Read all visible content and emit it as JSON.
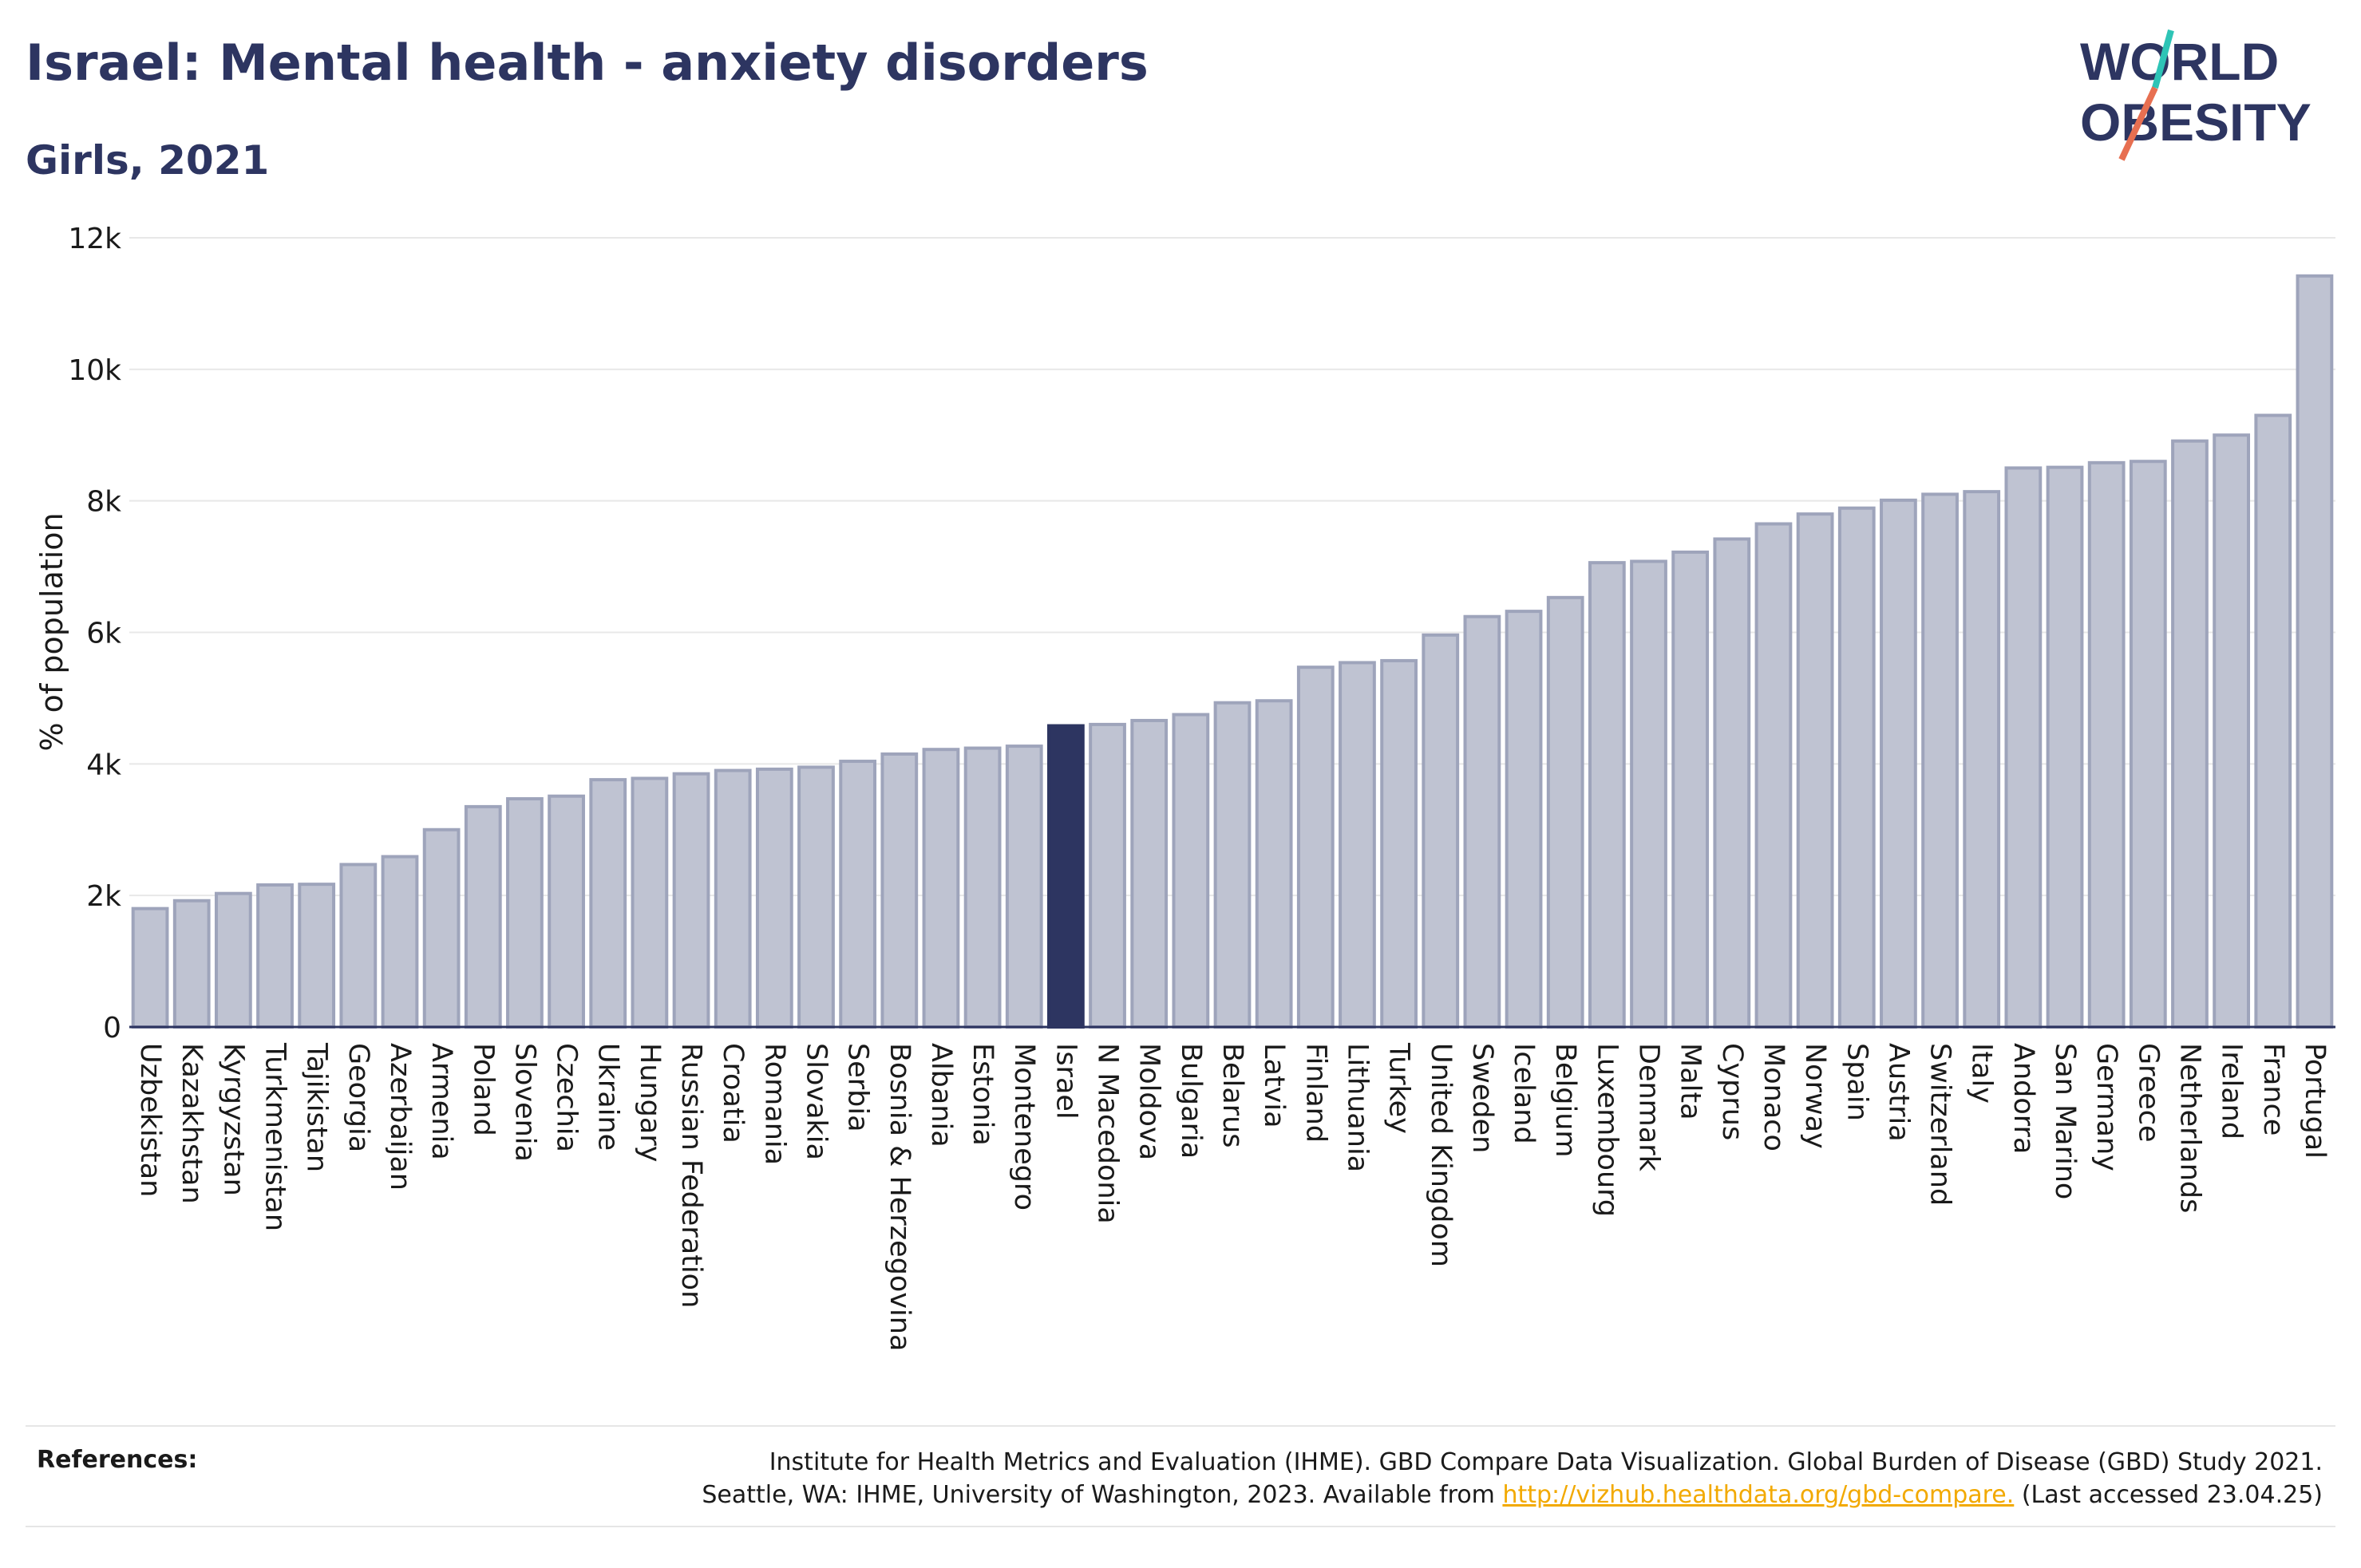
{
  "header": {
    "title": "Israel: Mental health - anxiety disorders",
    "subtitle": "Girls, 2021"
  },
  "logo": {
    "line1": "WORLD",
    "line2": "OBESITY",
    "slash_colors": [
      "#2ec4b6",
      "#e76f51"
    ]
  },
  "references": {
    "label": "References:",
    "line1": "Institute for Health Metrics and Evaluation (IHME). GBD Compare Data Visualization. Global Burden of Disease (GBD) Study 2021.",
    "line2_prefix": "Seattle, WA: IHME, University of Washington, 2023. Available from ",
    "link": "http://vizhub.healthdata.org/gbd-compare.",
    "line2_suffix": " (Last accessed 23.04.25)"
  },
  "colors": {
    "bar": "#bfc3d2",
    "bar_border": "#9ea4bb",
    "highlight": "#2d3561",
    "grid": "#e8e8e8",
    "axis": "#2d3561"
  },
  "chart_data": {
    "type": "bar",
    "title": "Israel: Mental health - anxiety disorders",
    "subtitle": "Girls, 2021",
    "ylabel": "% of population",
    "xlabel": "",
    "ylim": [
      0,
      12000
    ],
    "yticks": [
      0,
      2000,
      4000,
      6000,
      8000,
      10000,
      12000
    ],
    "ytick_labels": [
      "0",
      "2k",
      "4k",
      "6k",
      "8k",
      "10k",
      "12k"
    ],
    "grid": true,
    "highlight": "Israel",
    "categories": [
      "Uzbekistan",
      "Kazakhstan",
      "Kyrgyzstan",
      "Turkmenistan",
      "Tajikistan",
      "Georgia",
      "Azerbaijan",
      "Armenia",
      "Poland",
      "Slovenia",
      "Czechia",
      "Ukraine",
      "Hungary",
      "Russian Federation",
      "Croatia",
      "Romania",
      "Slovakia",
      "Serbia",
      "Bosnia & Herzegovina",
      "Albania",
      "Estonia",
      "Montenegro",
      "Israel",
      "N Macedonia",
      "Moldova",
      "Bulgaria",
      "Belarus",
      "Latvia",
      "Finland",
      "Lithuania",
      "Turkey",
      "United Kingdom",
      "Sweden",
      "Iceland",
      "Belgium",
      "Luxembourg",
      "Denmark",
      "Malta",
      "Cyprus",
      "Monaco",
      "Norway",
      "Spain",
      "Austria",
      "Switzerland",
      "Italy",
      "Andorra",
      "San Marino",
      "Germany",
      "Greece",
      "Netherlands",
      "Ireland",
      "France",
      "Portugal"
    ],
    "values": [
      1800,
      1920,
      2030,
      2160,
      2170,
      2470,
      2590,
      3000,
      3350,
      3470,
      3510,
      3760,
      3780,
      3850,
      3900,
      3920,
      3950,
      4040,
      4150,
      4220,
      4240,
      4270,
      4580,
      4600,
      4660,
      4750,
      4930,
      4960,
      5470,
      5540,
      5570,
      5960,
      6240,
      6320,
      6530,
      7060,
      7080,
      7220,
      7420,
      7650,
      7800,
      7890,
      8010,
      8100,
      8140,
      8500,
      8510,
      8580,
      8600,
      8910,
      9000,
      9300,
      11420
    ]
  }
}
